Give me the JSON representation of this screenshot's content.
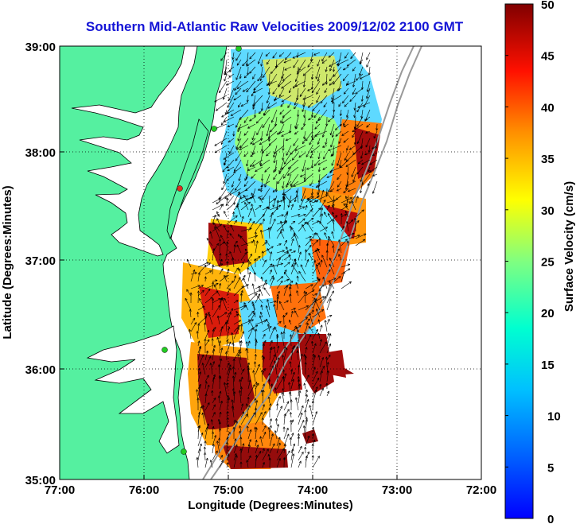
{
  "title": "Southern Mid-Atlantic Raw Velocities 2009/12/02 2100 GMT",
  "x_axis": {
    "label": "Longitude (Degrees:Minutes)",
    "ticks": [
      "77:00",
      "76:00",
      "75:00",
      "74:00",
      "73:00",
      "72:00"
    ]
  },
  "y_axis": {
    "label": "Latitude (Degrees:Minutes)",
    "ticks": [
      "39:00",
      "38:00",
      "37:00",
      "36:00",
      "35:00"
    ]
  },
  "colorbar": {
    "label": "Surface Velocity (cm/s)",
    "ticks": [
      "50",
      "45",
      "40",
      "35",
      "30",
      "25",
      "20",
      "15",
      "10",
      "5",
      "0"
    ]
  },
  "colors": {
    "land": "#55f0a0",
    "water_background": "#ffffff",
    "title": "#1515d6",
    "station_marker": "#22cc22",
    "grid": "#000000"
  },
  "chart_data": {
    "type": "heatmap",
    "title": "Southern Mid-Atlantic Raw Velocities 2009/12/02 2100 GMT",
    "xlabel": "Longitude (Degrees:Minutes)",
    "ylabel": "Latitude (Degrees:Minutes)",
    "xlim": [
      -77,
      -72
    ],
    "ylim": [
      35,
      39
    ],
    "clim": [
      0,
      50
    ],
    "colorbar_label": "Surface Velocity (cm/s)",
    "colormap": "jet",
    "grid": true,
    "overlay": "velocity vectors (arrows)"
  }
}
